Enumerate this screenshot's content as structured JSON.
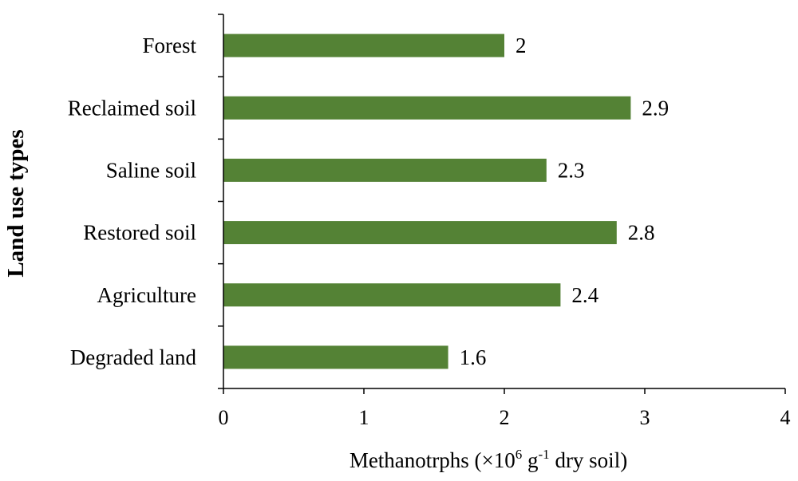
{
  "chart_data": {
    "type": "bar",
    "orientation": "horizontal",
    "categories": [
      "Forest",
      "Reclaimed soil",
      "Saline soil",
      "Restored soil",
      "Agriculture",
      "Degraded land"
    ],
    "values": [
      2,
      2.9,
      2.3,
      2.8,
      2.4,
      1.6
    ],
    "value_labels": [
      "2",
      "2.9",
      "2.3",
      "2.8",
      "2.4",
      "1.6"
    ],
    "xlim": [
      0,
      4
    ],
    "xticks": [
      0,
      1,
      2,
      3,
      4
    ],
    "xtick_labels": [
      "0",
      "1",
      "2",
      "3",
      "4"
    ],
    "xlabel": {
      "prefix": "Methanotrphs (×10",
      "exp1": "6",
      "mid": " g",
      "exp2": "-1",
      "suffix": " dry soil)"
    },
    "ylabel": "Land use types",
    "bar_color": "#548235",
    "grid": false,
    "legend": "none"
  }
}
